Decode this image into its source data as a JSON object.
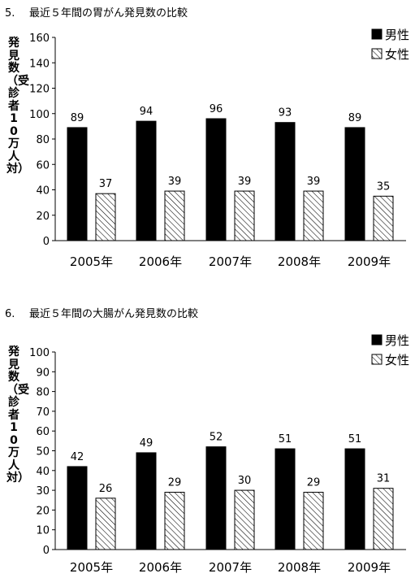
{
  "chart_data": [
    {
      "type": "bar",
      "number": "5.",
      "title": "最近５年間の胃がん発見数の比較",
      "ylabel": "発見数（受診者10万人対）",
      "categories": [
        "2005年",
        "2006年",
        "2007年",
        "2008年",
        "2009年"
      ],
      "series": [
        {
          "name": "男性",
          "values": [
            89,
            94,
            96,
            93,
            89
          ],
          "fill": "#000000"
        },
        {
          "name": "女性",
          "values": [
            37,
            39,
            39,
            39,
            35
          ],
          "fill": "hatch"
        }
      ],
      "yticks": [
        0,
        20,
        40,
        60,
        80,
        100,
        120,
        140,
        160
      ],
      "ylim": [
        0,
        160
      ],
      "legend_position": "top-right",
      "grid": false
    },
    {
      "type": "bar",
      "number": "6.",
      "title": "最近５年間の大腸がん発見数の比較",
      "ylabel": "発見数（受診者10万人対）",
      "categories": [
        "2005年",
        "2006年",
        "2007年",
        "2008年",
        "2009年"
      ],
      "series": [
        {
          "name": "男性",
          "values": [
            42,
            49,
            52,
            51,
            51
          ],
          "fill": "#000000"
        },
        {
          "name": "女性",
          "values": [
            26,
            29,
            30,
            29,
            31
          ],
          "fill": "hatch"
        }
      ],
      "yticks": [
        0,
        10,
        20,
        30,
        40,
        50,
        60,
        70,
        80,
        90,
        100
      ],
      "ylim": [
        0,
        100
      ],
      "legend_position": "top-right",
      "grid": false
    }
  ]
}
